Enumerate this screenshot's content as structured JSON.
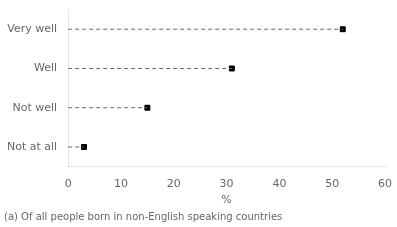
{
  "chart_data": {
    "type": "lollipop",
    "categories": [
      "Not at all",
      "Not well",
      "Well",
      "Very well"
    ],
    "values": [
      3,
      15,
      31,
      52
    ],
    "color": "#000000",
    "marker": "square",
    "line_style": "dashed",
    "xlabel": "%",
    "xlim": [
      0,
      60
    ],
    "xticks": [
      0,
      10,
      20,
      30,
      40,
      50,
      60
    ],
    "grid": false,
    "footnote": "(a) Of all people born in non-English speaking countries"
  }
}
